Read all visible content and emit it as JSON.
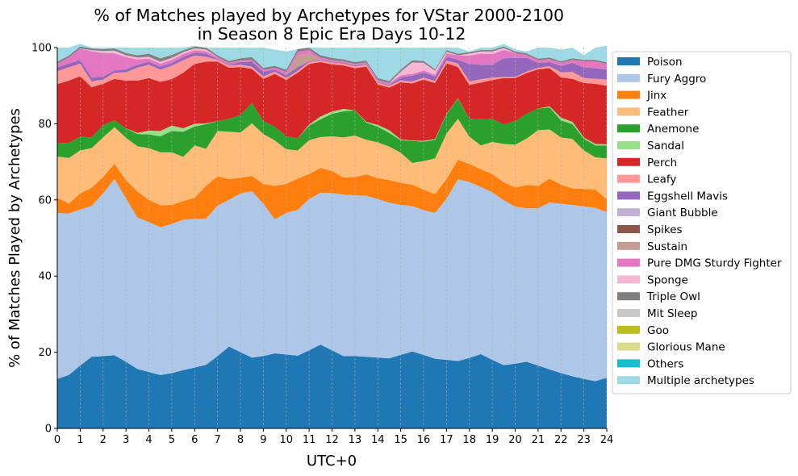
{
  "chart_data": {
    "type": "area",
    "stacked": true,
    "title": "% of Matches played by Archetypes for VStar 2000-2100\nin Season 8 Epic Era Days 10-12",
    "xlabel": "UTC+0",
    "ylabel": "% of Matches Played by Archetypes",
    "xlim": [
      0,
      24
    ],
    "ylim": [
      0,
      100
    ],
    "xticks": [
      "0",
      "1",
      "2",
      "3",
      "4",
      "5",
      "6",
      "7",
      "8",
      "9",
      "10",
      "11",
      "12",
      "13",
      "14",
      "15",
      "16",
      "17",
      "18",
      "19",
      "20",
      "21",
      "22",
      "23",
      "24"
    ],
    "yticks": [
      "0",
      "20",
      "40",
      "60",
      "80",
      "100"
    ],
    "grid": "vertical dashed",
    "legend_position": "right",
    "x": [
      0,
      0.5,
      1,
      1.5,
      2,
      2.5,
      3,
      3.5,
      4,
      4.5,
      5,
      5.5,
      6,
      6.5,
      7,
      7.5,
      8,
      8.5,
      9,
      9.5,
      10,
      10.5,
      11,
      11.5,
      12,
      12.5,
      13,
      13.5,
      14,
      14.5,
      15,
      15.5,
      16,
      16.5,
      17,
      17.5,
      18,
      18.5,
      19,
      19.5,
      20,
      20.5,
      21,
      21.5,
      22,
      22.5,
      23,
      23.5,
      24
    ],
    "series": [
      {
        "name": "Poison",
        "color": "#1f77b4",
        "values": [
          13,
          14,
          16.5,
          18.8,
          19,
          19.2,
          17.5,
          15.6,
          14.8,
          14,
          14.5,
          15.3,
          16,
          16.7,
          19,
          21.5,
          20,
          18.6,
          19,
          19.7,
          19.4,
          19.1,
          20.5,
          22,
          20.5,
          19,
          19,
          18.8,
          18.6,
          18.4,
          19.3,
          20.2,
          19.3,
          18.3,
          18,
          17.7,
          18.5,
          19.5,
          18,
          16.6,
          17,
          17.5,
          16.5,
          15.5,
          14.5,
          13.7,
          13,
          12.4,
          13.3
        ]
      },
      {
        "name": "Fury Aggro",
        "color": "#aec7e8",
        "values": [
          43.6,
          42.4,
          41,
          39.6,
          42.7,
          46.3,
          42.9,
          39.8,
          39.4,
          38.8,
          39.2,
          39.5,
          39,
          38.4,
          39.5,
          38.5,
          41.7,
          43.7,
          40,
          35.2,
          37.2,
          38.3,
          39.7,
          39.9,
          41.3,
          42.4,
          42.2,
          42.3,
          41.6,
          40.9,
          39.4,
          38.2,
          38,
          38.3,
          42.3,
          47.7,
          46.2,
          43.9,
          44,
          43.3,
          41.2,
          40.3,
          41.3,
          43.8,
          44.5,
          45,
          45.3,
          45.5,
          43.5
        ]
      },
      {
        "name": "Jinx",
        "color": "#ff7f0e",
        "values": [
          4,
          2.6,
          4.2,
          4.8,
          4.3,
          4,
          4.8,
          6.8,
          5.8,
          5.8,
          5,
          4.9,
          5.6,
          8.6,
          7.7,
          5.5,
          4.1,
          4,
          5.2,
          8.8,
          7.6,
          8.2,
          6.6,
          6.5,
          5.8,
          4.5,
          4.8,
          5.6,
          5.5,
          5.9,
          5.8,
          5.6,
          5.4,
          4.9,
          5.2,
          5.1,
          4.8,
          4.6,
          4.8,
          4.7,
          5.1,
          6.1,
          5.9,
          6.3,
          5,
          4.3,
          4.6,
          4.8,
          3.4
        ]
      },
      {
        "name": "Feather",
        "color": "#ffbb78",
        "values": [
          10.8,
          12,
          11.3,
          10.4,
          10.4,
          9.6,
          11.1,
          11.9,
          13.6,
          13.9,
          13.8,
          11.6,
          13.7,
          9.7,
          11.9,
          12.4,
          11.9,
          13.8,
          13.1,
          11.9,
          9.1,
          7.4,
          8.9,
          8.1,
          9.1,
          10.5,
          10.9,
          9.1,
          9.4,
          8.8,
          7.9,
          5.7,
          7.5,
          9.4,
          11.9,
          10.8,
          7.1,
          6.3,
          8.4,
          10.1,
          11.2,
          12.2,
          14.6,
          12.9,
          12.4,
          13,
          10.1,
          8.5,
          10.7
        ]
      },
      {
        "name": "Anemone",
        "color": "#2ca02c",
        "values": [
          3.5,
          4,
          3.6,
          2.8,
          3.2,
          1.8,
          2.5,
          3.2,
          3.6,
          4.2,
          5.6,
          6.6,
          5,
          6.5,
          2.6,
          3.4,
          4.6,
          5.4,
          3.4,
          3.6,
          3.4,
          3.2,
          3.8,
          4.7,
          5.9,
          6.9,
          6.6,
          4.5,
          4.1,
          3.6,
          3.3,
          5.8,
          5.1,
          4.9,
          5.1,
          5.3,
          4.7,
          6.9,
          6.1,
          5.1,
          6.2,
          6.5,
          5.7,
          5.8,
          4.5,
          3.9,
          3.1,
          3.1,
          3.4
        ]
      },
      {
        "name": "Sandal",
        "color": "#98df8a",
        "values": [
          0,
          0,
          0,
          0,
          0,
          0,
          0,
          0.3,
          1,
          1.4,
          1.4,
          0.9,
          0.7,
          0.2,
          0,
          0,
          0,
          0,
          0,
          0,
          0,
          0,
          0.3,
          0.7,
          0.6,
          0.6,
          0,
          0.2,
          0.5,
          0.7,
          0.2,
          0.1,
          0.2,
          0.2,
          0.1,
          0.1,
          0,
          0,
          0,
          0,
          0,
          0,
          0,
          0.3,
          0.7,
          0.6,
          0.3,
          0.4,
          0.3
        ]
      },
      {
        "name": "Perch",
        "color": "#d62728",
        "values": [
          15.5,
          16.3,
          15.9,
          13.2,
          10.9,
          10.9,
          12.5,
          13.7,
          13.8,
          12.9,
          12.2,
          14.6,
          15.7,
          16.2,
          15.6,
          13.4,
          12.6,
          8.9,
          11.1,
          13.9,
          14.8,
          17.2,
          15.9,
          14.3,
          12.4,
          11.4,
          11.1,
          14.5,
          10.6,
          11.2,
          15,
          15,
          16.1,
          14.7,
          13.3,
          8.2,
          8.9,
          9.6,
          10.2,
          12.2,
          11.3,
          10.7,
          10.3,
          10,
          10.6,
          11.3,
          14.3,
          15.8,
          15.4
        ]
      },
      {
        "name": "Leafy",
        "color": "#ff9896",
        "values": [
          3.4,
          3.5,
          3.3,
          1.5,
          1.1,
          1.6,
          2.2,
          3.4,
          3.5,
          3.2,
          3.5,
          3.3,
          2.2,
          1.3,
          0.5,
          0.6,
          0.6,
          0.6,
          0.6,
          0.6,
          0.5,
          0.5,
          0.5,
          0.5,
          0.5,
          0.5,
          0.5,
          0.5,
          0.5,
          0.5,
          0.5,
          0.5,
          0.5,
          0.5,
          0.7,
          0.9,
          0.9,
          0.9,
          0.6,
          0.3,
          0.3,
          0.4,
          0.4,
          0.5,
          1.3,
          1.8,
          1.3,
          1.3,
          1.6
        ]
      },
      {
        "name": "Eggshell Mavis",
        "color": "#9467bd",
        "values": [
          1,
          1,
          1,
          1,
          0.8,
          0.6,
          0.8,
          0.8,
          0.8,
          0.8,
          0.8,
          0.8,
          0.8,
          0.8,
          0.2,
          0.2,
          0.7,
          1.3,
          1.3,
          0.5,
          0.8,
          1,
          0.2,
          0.2,
          0.2,
          0.2,
          0.2,
          0.2,
          0.2,
          0.2,
          0.8,
          1.5,
          1.4,
          1.2,
          1,
          1,
          4.6,
          3.8,
          3.4,
          4.9,
          5,
          3.6,
          1.3,
          1.1,
          1.7,
          2.4,
          2.8,
          2.8,
          2.6
        ]
      },
      {
        "name": "Giant Bubble",
        "color": "#c5b0d5",
        "values": [
          0,
          0,
          0,
          0,
          0,
          0,
          0,
          0,
          0,
          0,
          0,
          0,
          0,
          0,
          0,
          0,
          0,
          0,
          0,
          0,
          0,
          0,
          0,
          0,
          0,
          0,
          0,
          0,
          0,
          0,
          0,
          0,
          0,
          0,
          0,
          0,
          0,
          0,
          0,
          0,
          0,
          0,
          0,
          0,
          0,
          0,
          0,
          0,
          0
        ]
      },
      {
        "name": "Spikes",
        "color": "#8c564b",
        "values": [
          0,
          0,
          0,
          0,
          0,
          0,
          0,
          0,
          0,
          0,
          0,
          0,
          0,
          0,
          0,
          0,
          0,
          0,
          0,
          0,
          0,
          0,
          0,
          0,
          0,
          0,
          0,
          0,
          0,
          0,
          0,
          0,
          0,
          0,
          0,
          0,
          0,
          0,
          0,
          0,
          0,
          0,
          0,
          0,
          0,
          0,
          0,
          0,
          0
        ]
      },
      {
        "name": "Sustain",
        "color": "#c49c94",
        "values": [
          0,
          0,
          0,
          0,
          0,
          0,
          0,
          0,
          0,
          0,
          0,
          0,
          0,
          0,
          0,
          0,
          0,
          0,
          0,
          0,
          0,
          3,
          2,
          0,
          0,
          0,
          0,
          0,
          0,
          0,
          0,
          0,
          0,
          0,
          0,
          0,
          0,
          0,
          0,
          0,
          0,
          0,
          0,
          0,
          0,
          0,
          0,
          0,
          0
        ]
      },
      {
        "name": "Pure DMG Sturdy Fighter",
        "color": "#e377c2",
        "values": [
          1,
          1.6,
          3,
          6.9,
          6.2,
          4.5,
          3.2,
          1.4,
          0.8,
          0.8,
          0.8,
          0.8,
          0.6,
          0.6,
          0.5,
          0.5,
          0.5,
          0.5,
          0.5,
          0.5,
          0.8,
          1,
          1,
          0.5,
          0.4,
          0.4,
          0.4,
          0.4,
          0.5,
          0.5,
          0.5,
          0.5,
          0.5,
          0.5,
          0.8,
          1.2,
          2.2,
          2.9,
          2.8,
          2.2,
          1.3,
          0.8,
          0.7,
          0.8,
          0.8,
          0.8,
          1.6,
          1.8,
          1.5
        ]
      },
      {
        "name": "Sponge",
        "color": "#f7b6d2",
        "values": [
          0,
          0,
          0,
          0.3,
          0.5,
          0.7,
          0.5,
          0.5,
          0.5,
          0.5,
          0.5,
          0.5,
          0.5,
          0.5,
          0,
          0,
          0,
          0,
          0,
          0,
          0,
          0,
          0,
          0,
          0,
          0,
          0,
          0,
          0,
          0,
          1,
          3,
          2,
          1,
          0.5,
          0,
          0.5,
          0.6,
          0.7,
          0.5,
          0,
          0,
          0,
          0,
          0,
          0,
          0,
          0,
          0
        ]
      },
      {
        "name": "Triple Owl",
        "color": "#7f7f7f",
        "values": [
          0.5,
          0.5,
          0.5,
          0.5,
          0.5,
          0.6,
          0.6,
          0.6,
          0.8,
          0.9,
          0.8,
          0.5,
          0.5,
          0.5,
          0.5,
          0.5,
          0.5,
          0.7,
          0.5,
          0.5,
          0.6,
          0.7,
          0.6,
          0.6,
          0.6,
          0.5,
          0.5,
          0.5,
          0.5,
          0.5,
          0.5,
          0.6,
          0.5,
          0.4,
          0.4,
          0.4,
          0.4,
          0.4,
          0.4,
          0.4,
          0.4,
          0.4,
          0.4,
          0.4,
          0.4,
          0.4,
          0.4,
          0.4,
          0.4
        ]
      },
      {
        "name": "Mit Sleep",
        "color": "#c7c7c7",
        "values": [
          0,
          0,
          0,
          0,
          0,
          0,
          0,
          0,
          0,
          0,
          0,
          0,
          0,
          0,
          0,
          0,
          0,
          0,
          0,
          0,
          0,
          0,
          0,
          0,
          0,
          0,
          0,
          0,
          0,
          0,
          0,
          0,
          0,
          0,
          0,
          0,
          0,
          0,
          0,
          0,
          0,
          0,
          0,
          0,
          0,
          0,
          0,
          0,
          0
        ]
      },
      {
        "name": "Goo",
        "color": "#bcbd22",
        "values": [
          0,
          0,
          0,
          0,
          0,
          0,
          0,
          0,
          0,
          0,
          0,
          0,
          0,
          0,
          0,
          0,
          0,
          0,
          0,
          0,
          0,
          0,
          0,
          0,
          0,
          0,
          0,
          0,
          0,
          0,
          0,
          0,
          0,
          0,
          0,
          0,
          0,
          0,
          0,
          0,
          0,
          0,
          0,
          0,
          0,
          0,
          0,
          0,
          0
        ]
      },
      {
        "name": "Glorious Mane",
        "color": "#dbdb8d",
        "values": [
          0,
          0,
          0,
          0,
          0,
          0,
          0,
          0,
          0,
          0,
          0,
          0,
          0,
          0,
          0,
          0,
          0,
          0,
          0,
          0,
          0,
          0,
          0,
          0,
          0,
          0,
          0,
          0,
          0,
          0,
          0,
          0,
          0,
          0,
          0,
          0,
          0,
          0,
          0,
          0,
          0,
          0,
          0,
          0,
          0,
          0,
          0,
          0,
          0
        ]
      },
      {
        "name": "Others",
        "color": "#17becf",
        "values": [
          0,
          0,
          0,
          0,
          0,
          0,
          0,
          0,
          0,
          0,
          0,
          0,
          0,
          0,
          0,
          0,
          0,
          0,
          0,
          0,
          0,
          0,
          0,
          0,
          0,
          0,
          0,
          0,
          0,
          0,
          0,
          0,
          0,
          0,
          0,
          0,
          0,
          0,
          0,
          0,
          0,
          0,
          0,
          0,
          0,
          0,
          0,
          0,
          0
        ]
      },
      {
        "name": "Multiple archetypes",
        "color": "#9edae5",
        "values": [
          3.7,
          2.1,
          0.7,
          0.2,
          0.4,
          0.2,
          1.4,
          2,
          1.6,
          2.8,
          1.9,
          0.7,
          0.2,
          0,
          2,
          3.5,
          2.8,
          2.5,
          5.3,
          4.3,
          4.8,
          0,
          0,
          2,
          2.7,
          3.1,
          3.8,
          3.4,
          8,
          8.8,
          5.8,
          3.3,
          3.5,
          5.7,
          0.7,
          1.6,
          0.2,
          0.6,
          0.6,
          0.7,
          0.5,
          0.5,
          2.9,
          2.6,
          3.1,
          2.8,
          1.2,
          3.2,
          4.4
        ]
      }
    ]
  }
}
